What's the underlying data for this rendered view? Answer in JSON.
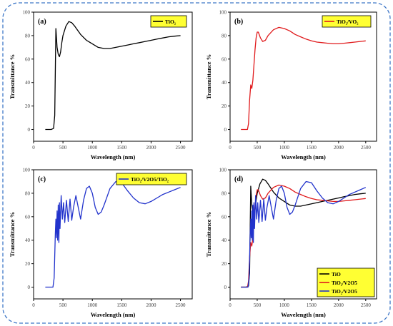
{
  "figure": {
    "border_color": "#3f78c8",
    "background": "#ffffff",
    "axis_color": "#000000",
    "tick_text_color": "#444444",
    "legend_fill": "#ffff33"
  },
  "chart_data": [
    {
      "type": "line",
      "panel": "(a)",
      "xlabel": "Wavelength (nm)",
      "ylabel": "Transmittance %",
      "xlim": [
        0,
        2700
      ],
      "ylim": [
        -10,
        100
      ],
      "xticks": [
        0,
        500,
        1000,
        1500,
        2000,
        2500
      ],
      "yticks": [
        0,
        20,
        40,
        60,
        80,
        100
      ],
      "legend": "top-right",
      "series": [
        {
          "name": "TiO₂",
          "color": "#000000",
          "x": [
            200,
            300,
            340,
            360,
            380,
            400,
            420,
            440,
            460,
            480,
            500,
            550,
            600,
            650,
            700,
            800,
            900,
            1000,
            1100,
            1200,
            1300,
            1400,
            1500,
            1600,
            1700,
            1800,
            1900,
            2000,
            2100,
            2200,
            2300,
            2400,
            2500
          ],
          "y": [
            0,
            0,
            1,
            12,
            86,
            70,
            64,
            62,
            66,
            74,
            80,
            88,
            92,
            91,
            88,
            81,
            76,
            73,
            70,
            69,
            69,
            70,
            71,
            72,
            73,
            74,
            75,
            76,
            77,
            78,
            79,
            79.5,
            80
          ]
        }
      ]
    },
    {
      "type": "line",
      "panel": "(b)",
      "xlabel": "Wavelength (nm)",
      "ylabel": "Transmittance %",
      "xlim": [
        0,
        2700
      ],
      "ylim": [
        -10,
        100
      ],
      "xticks": [
        0,
        500,
        1000,
        1500,
        2000,
        2500
      ],
      "yticks": [
        0,
        20,
        40,
        60,
        80,
        100
      ],
      "legend": "top-right",
      "series": [
        {
          "name": "TiO₂/VO₂",
          "color": "#e0191b",
          "x": [
            200,
            320,
            340,
            360,
            380,
            400,
            420,
            440,
            460,
            480,
            500,
            520,
            560,
            600,
            650,
            700,
            800,
            900,
            1000,
            1100,
            1200,
            1300,
            1400,
            1500,
            1600,
            1700,
            1800,
            1900,
            2000,
            2100,
            2200,
            2300,
            2400,
            2500
          ],
          "y": [
            0,
            0,
            5,
            25,
            38,
            35,
            42,
            55,
            68,
            78,
            83,
            83,
            78,
            75,
            76,
            80,
            85,
            87,
            86,
            84,
            81,
            79,
            77,
            75.5,
            74.5,
            74,
            73.5,
            73,
            73,
            73.5,
            74,
            74.5,
            75,
            75.5
          ]
        }
      ]
    },
    {
      "type": "line",
      "panel": "(c)",
      "xlabel": "Wavelength (nm)",
      "ylabel": "Transmittance %",
      "xlim": [
        0,
        2700
      ],
      "ylim": [
        -10,
        100
      ],
      "xticks": [
        0,
        500,
        1000,
        1500,
        2000,
        2500
      ],
      "yticks": [
        0,
        20,
        40,
        60,
        80,
        100
      ],
      "legend": "top-right",
      "series": [
        {
          "name": "TiO₂/V2O5/TiO₂",
          "color": "#2233cc",
          "x": [
            200,
            330,
            350,
            370,
            380,
            390,
            400,
            410,
            420,
            430,
            440,
            450,
            470,
            490,
            510,
            530,
            560,
            590,
            620,
            650,
            680,
            720,
            760,
            800,
            850,
            900,
            950,
            1000,
            1050,
            1100,
            1150,
            1200,
            1300,
            1400,
            1500,
            1600,
            1700,
            1800,
            1900,
            2000,
            2100,
            2200,
            2300,
            2400,
            2500
          ],
          "y": [
            0,
            0,
            8,
            45,
            58,
            42,
            65,
            40,
            70,
            38,
            72,
            50,
            78,
            58,
            72,
            55,
            74,
            56,
            75,
            57,
            68,
            78,
            68,
            58,
            74,
            84,
            86,
            80,
            68,
            62,
            64,
            70,
            84,
            90,
            89,
            82,
            76,
            72,
            71,
            73,
            76,
            79,
            81,
            83,
            85
          ]
        }
      ]
    },
    {
      "type": "line",
      "panel": "(d)",
      "xlabel": "Wavelength (nm)",
      "ylabel": "Transmittance %",
      "xlim": [
        0,
        2700
      ],
      "ylim": [
        -10,
        100
      ],
      "xticks": [
        0,
        500,
        1000,
        1500,
        2000,
        2500
      ],
      "yticks": [
        0,
        20,
        40,
        60,
        80,
        100
      ],
      "legend": "bottom-right",
      "series": [
        {
          "name": "TiO",
          "color": "#000000",
          "x": [
            200,
            300,
            340,
            360,
            380,
            400,
            420,
            440,
            460,
            480,
            500,
            550,
            600,
            650,
            700,
            800,
            900,
            1000,
            1100,
            1200,
            1300,
            1400,
            1500,
            1600,
            1700,
            1800,
            1900,
            2000,
            2100,
            2200,
            2300,
            2400,
            2500
          ],
          "y": [
            0,
            0,
            1,
            12,
            86,
            70,
            64,
            62,
            66,
            74,
            80,
            88,
            92,
            91,
            88,
            81,
            76,
            73,
            70,
            69,
            69,
            70,
            71,
            72,
            73,
            74,
            75,
            76,
            77,
            78,
            79,
            79.5,
            80
          ]
        },
        {
          "name": "TiO₂/V2O5",
          "color": "#e0191b",
          "x": [
            200,
            320,
            340,
            360,
            380,
            400,
            420,
            440,
            460,
            480,
            500,
            520,
            560,
            600,
            650,
            700,
            800,
            900,
            1000,
            1100,
            1200,
            1300,
            1400,
            1500,
            1600,
            1700,
            1800,
            1900,
            2000,
            2100,
            2200,
            2300,
            2400,
            2500
          ],
          "y": [
            0,
            0,
            5,
            25,
            38,
            35,
            42,
            55,
            68,
            78,
            83,
            83,
            78,
            75,
            76,
            80,
            85,
            87,
            86,
            84,
            81,
            79,
            77,
            75.5,
            74.5,
            74,
            73.5,
            73,
            73,
            73.5,
            74,
            74.5,
            75,
            75.5
          ]
        },
        {
          "name": "TiO₂/V2O5",
          "color": "#2233cc",
          "x": [
            200,
            330,
            350,
            370,
            380,
            390,
            400,
            410,
            420,
            430,
            440,
            450,
            470,
            490,
            510,
            530,
            560,
            590,
            620,
            650,
            680,
            720,
            760,
            800,
            850,
            900,
            950,
            1000,
            1050,
            1100,
            1150,
            1200,
            1300,
            1400,
            1500,
            1600,
            1700,
            1800,
            1900,
            2000,
            2100,
            2200,
            2300,
            2400,
            2500
          ],
          "y": [
            0,
            0,
            8,
            45,
            58,
            42,
            65,
            40,
            70,
            38,
            72,
            50,
            78,
            58,
            72,
            55,
            74,
            56,
            75,
            57,
            68,
            78,
            68,
            58,
            74,
            84,
            86,
            80,
            68,
            62,
            64,
            70,
            84,
            90,
            89,
            82,
            76,
            72,
            71,
            73,
            76,
            79,
            81,
            83,
            85
          ]
        }
      ]
    }
  ]
}
